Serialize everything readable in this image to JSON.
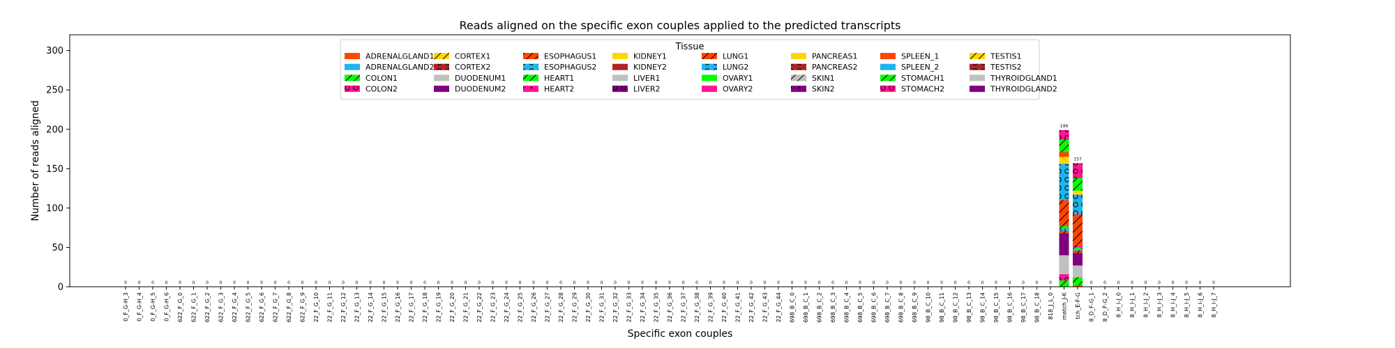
{
  "chart_data": {
    "type": "bar",
    "stacked": true,
    "title": "Reads aligned on the specific exon couples applied to the predicted transcripts",
    "xlabel": "Specific exon couples",
    "ylabel": "Number of reads aligned",
    "ylim": [
      0,
      320
    ],
    "yticks": [
      0,
      50,
      100,
      150,
      200,
      250,
      300
    ],
    "legend_title": "Tissue",
    "legend_placement": "top-center",
    "categories": [
      "0_F_G-H_3",
      "0_F_G-H_4",
      "0_F_G-H_5",
      "0_F_G-H_6",
      "622_F_G_0",
      "622_F_G_1",
      "622_F_G_2",
      "622_F_G_3",
      "622_F_G_4",
      "622_F_G_5",
      "622_F_G_6",
      "622_F_G_7",
      "622_F_G_8",
      "622_F_G_9",
      "22_F_G_10",
      "22_F_G_11",
      "22_F_G_12",
      "22_F_G_13",
      "22_F_G_14",
      "22_F_G_15",
      "22_F_G_16",
      "22_F_G_17",
      "22_F_G_18",
      "22_F_G_19",
      "22_F_G_20",
      "22_F_G_21",
      "22_F_G_22",
      "22_F_G_23",
      "22_F_G_24",
      "22_F_G_25",
      "22_F_G_26",
      "22_F_G_27",
      "22_F_G_28",
      "22_F_G_29",
      "22_F_G_30",
      "22_F_G_31",
      "22_F_G_32",
      "22_F_G_33",
      "22_F_G_34",
      "22_F_G_35",
      "22_F_G_36",
      "22_F_G_37",
      "22_F_G_38",
      "22_F_G_39",
      "22_F_G_40",
      "22_F_G_41",
      "22_F_G_42",
      "22_F_G_43",
      "22_F_G_44",
      "698_B_C_0",
      "698_B_C_1",
      "698_B_C_2",
      "698_B_C_3",
      "698_B_C_4",
      "698_B_C_5",
      "698_B_C_6",
      "698_B_C_7",
      "698_B_C_8",
      "698_B_C_9",
      "98_B_C_10",
      "98_B_C_11",
      "98_B_C_12",
      "98_B_C_13",
      "98_B_C_14",
      "98_B_C_15",
      "98_B_C_16",
      "98_B_C_17",
      "98_B_C_18",
      "818_J_L_0",
      "match_J-K",
      "tch_E-F-G",
      "8_D_F-G_1",
      "8_D_F-G_2",
      "8_H_I-J_0",
      "8_H_I-J_1",
      "8_H_I-J_2",
      "8_H_I-J_3",
      "8_H_I-J_4",
      "8_H_I-J_5",
      "8_H_I-J_6",
      "8_H_I-J_7"
    ],
    "totals": [
      0,
      0,
      0,
      0,
      0,
      0,
      0,
      0,
      0,
      0,
      0,
      0,
      0,
      0,
      0,
      0,
      0,
      0,
      0,
      0,
      0,
      0,
      0,
      0,
      0,
      0,
      0,
      0,
      0,
      0,
      0,
      0,
      0,
      0,
      0,
      0,
      0,
      0,
      0,
      0,
      0,
      0,
      0,
      0,
      0,
      0,
      0,
      0,
      0,
      0,
      0,
      0,
      0,
      0,
      0,
      0,
      0,
      0,
      0,
      0,
      0,
      0,
      0,
      0,
      0,
      0,
      0,
      0,
      0,
      199,
      157,
      0,
      0,
      0,
      0,
      0,
      0,
      0,
      0,
      0,
      0
    ],
    "series": [
      {
        "name": "ADRENALGLAND1",
        "color": "#ff4500",
        "hatch": "",
        "bars": {
          "match_J-K": 0,
          "tch_E-F-G": 2
        }
      },
      {
        "name": "ADRENALGLAND2",
        "color": "#1eb4f0",
        "hatch": "dot",
        "bars": {
          "match_J-K": 0,
          "tch_E-F-G": 0
        }
      },
      {
        "name": "COLON1",
        "color": "#00ff00",
        "hatch": "slash",
        "bars": {
          "match_J-K": 8,
          "tch_E-F-G": 10
        }
      },
      {
        "name": "COLON2",
        "color": "#ff1493",
        "hatch": "circle",
        "bars": {
          "match_J-K": 8,
          "tch_E-F-G": 0
        }
      },
      {
        "name": "CORTEX1",
        "color": "#ffd700",
        "hatch": "slash",
        "bars": {
          "match_J-K": 0,
          "tch_E-F-G": 0
        }
      },
      {
        "name": "CORTEX2",
        "color": "#b22222",
        "hatch": "circle",
        "bars": {
          "match_J-K": 0,
          "tch_E-F-G": 0
        }
      },
      {
        "name": "DUODENUM1",
        "color": "#c0c0c0",
        "hatch": "",
        "bars": {
          "match_J-K": 24,
          "tch_E-F-G": 15
        }
      },
      {
        "name": "DUODENUM2",
        "color": "#800080",
        "hatch": "",
        "bars": {
          "match_J-K": 28,
          "tch_E-F-G": 16
        }
      },
      {
        "name": "ESOPHAGUS1",
        "color": "#ff4500",
        "hatch": "slash",
        "bars": {
          "match_J-K": 3,
          "tch_E-F-G": 3
        }
      },
      {
        "name": "ESOPHAGUS2",
        "color": "#1eb4f0",
        "hatch": "circle",
        "bars": {
          "match_J-K": 3,
          "tch_E-F-G": 2
        }
      },
      {
        "name": "HEART1",
        "color": "#00ff00",
        "hatch": "slash",
        "bars": {
          "match_J-K": 3,
          "tch_E-F-G": 2
        }
      },
      {
        "name": "HEART2",
        "color": "#ff1493",
        "hatch": "dot",
        "bars": {
          "match_J-K": 0,
          "tch_E-F-G": 2
        }
      },
      {
        "name": "KIDNEY1",
        "color": "#ffd700",
        "hatch": "",
        "bars": {
          "match_J-K": 0,
          "tch_E-F-G": 0
        }
      },
      {
        "name": "KIDNEY2",
        "color": "#b22222",
        "hatch": "dot",
        "bars": {
          "match_J-K": 0,
          "tch_E-F-G": 0
        }
      },
      {
        "name": "LIVER1",
        "color": "#c0c0c0",
        "hatch": "",
        "bars": {
          "match_J-K": 0,
          "tch_E-F-G": 0
        }
      },
      {
        "name": "LIVER2",
        "color": "#800080",
        "hatch": "circle",
        "bars": {
          "match_J-K": 0,
          "tch_E-F-G": 0
        }
      },
      {
        "name": "LUNG1",
        "color": "#ff4500",
        "hatch": "slash",
        "bars": {
          "match_J-K": 33,
          "tch_E-F-G": 40
        }
      },
      {
        "name": "LUNG2",
        "color": "#1eb4f0",
        "hatch": "circle",
        "bars": {
          "match_J-K": 46,
          "tch_E-F-G": 25
        }
      },
      {
        "name": "OVARY1",
        "color": "#00ff00",
        "hatch": "",
        "bars": {
          "match_J-K": 0,
          "tch_E-F-G": 0
        }
      },
      {
        "name": "OVARY2",
        "color": "#ff1493",
        "hatch": "",
        "bars": {
          "match_J-K": 0,
          "tch_E-F-G": 0
        }
      },
      {
        "name": "PANCREAS1",
        "color": "#ffd700",
        "hatch": "",
        "bars": {
          "match_J-K": 9,
          "tch_E-F-G": 5
        }
      },
      {
        "name": "PANCREAS2",
        "color": "#b22222",
        "hatch": "circle",
        "bars": {
          "match_J-K": 0,
          "tch_E-F-G": 0
        }
      },
      {
        "name": "SKIN1",
        "color": "#c0c0c0",
        "hatch": "slash",
        "bars": {
          "match_J-K": 0,
          "tch_E-F-G": 0
        }
      },
      {
        "name": "SKIN2",
        "color": "#800080",
        "hatch": "dot",
        "bars": {
          "match_J-K": 0,
          "tch_E-F-G": 0
        }
      },
      {
        "name": "SPLEEN_1",
        "color": "#ff4500",
        "hatch": "",
        "bars": {
          "match_J-K": 6,
          "tch_E-F-G": 0
        }
      },
      {
        "name": "SPLEEN_2",
        "color": "#1eb4f0",
        "hatch": "dot",
        "bars": {
          "match_J-K": 0,
          "tch_E-F-G": 0
        }
      },
      {
        "name": "STOMACH1",
        "color": "#00ff00",
        "hatch": "slash",
        "bars": {
          "match_J-K": 16,
          "tch_E-F-G": 16
        }
      },
      {
        "name": "STOMACH2",
        "color": "#ff1493",
        "hatch": "circle",
        "bars": {
          "match_J-K": 12,
          "tch_E-F-G": 19
        }
      },
      {
        "name": "TESTIS1",
        "color": "#ffd700",
        "hatch": "slash",
        "bars": {
          "match_J-K": 0,
          "tch_E-F-G": 0
        }
      },
      {
        "name": "TESTIS2",
        "color": "#b22222",
        "hatch": "circle",
        "bars": {
          "match_J-K": 0,
          "tch_E-F-G": 0
        }
      },
      {
        "name": "THYROIDGLAND1",
        "color": "#c0c0c0",
        "hatch": "",
        "bars": {
          "match_J-K": 0,
          "tch_E-F-G": 0
        }
      },
      {
        "name": "THYROIDGLAND2",
        "color": "#800080",
        "hatch": "",
        "bars": {
          "match_J-K": 0,
          "tch_E-F-G": 0
        }
      }
    ]
  }
}
